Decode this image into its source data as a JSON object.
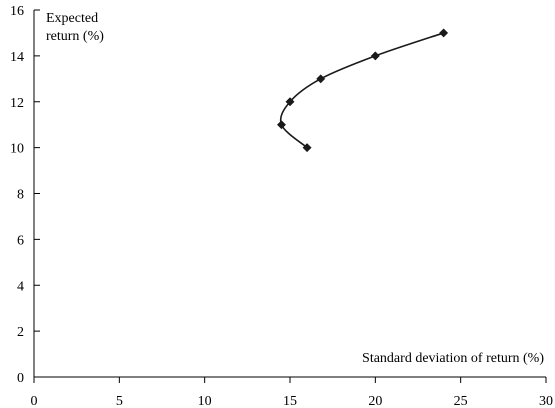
{
  "chart_data": {
    "type": "line",
    "title": "",
    "xlabel": "Standard deviation of return (%)",
    "ylabel_lines": [
      "Expected",
      "return (%)"
    ],
    "xlim": [
      0,
      30
    ],
    "ylim": [
      0,
      16
    ],
    "xticks": [
      0,
      5,
      10,
      15,
      20,
      25,
      30
    ],
    "yticks": [
      0,
      2,
      4,
      6,
      8,
      10,
      12,
      14,
      16
    ],
    "grid": false,
    "legend": "none",
    "colors": {
      "axis": "#000000",
      "series": "#1a1a1a"
    },
    "series": [
      {
        "marker": "diamond",
        "smooth": true,
        "points": [
          {
            "x": 16.0,
            "y": 10
          },
          {
            "x": 14.5,
            "y": 11
          },
          {
            "x": 15.0,
            "y": 12
          },
          {
            "x": 16.8,
            "y": 13
          },
          {
            "x": 20.0,
            "y": 14
          },
          {
            "x": 24.0,
            "y": 15
          }
        ]
      }
    ]
  }
}
